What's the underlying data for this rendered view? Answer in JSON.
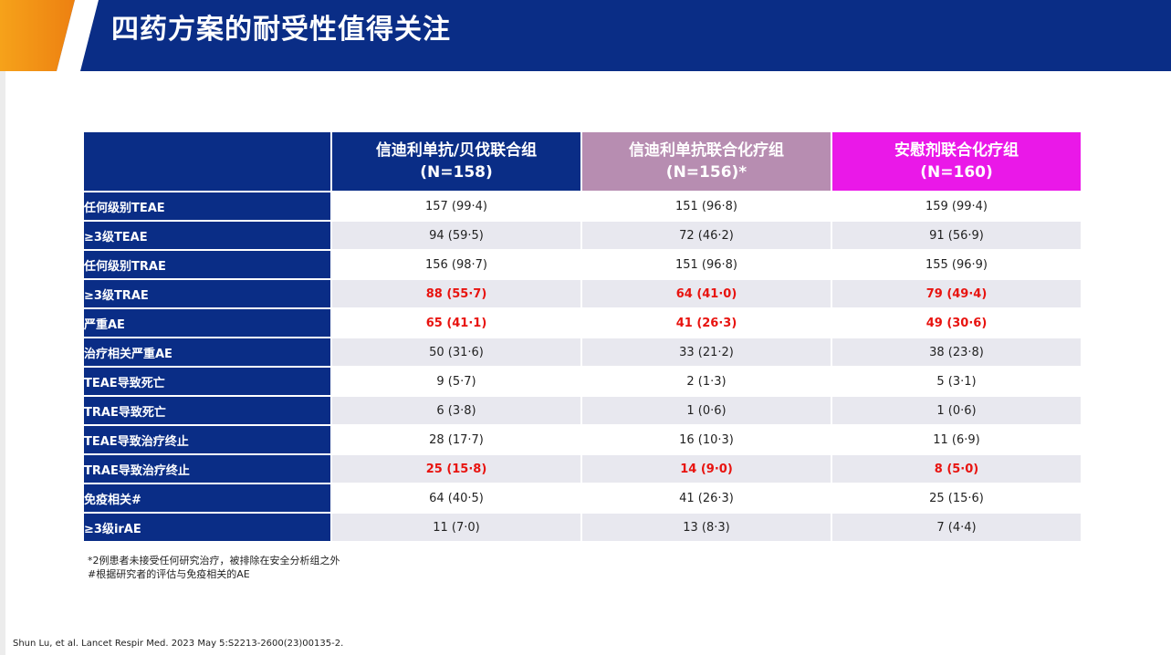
{
  "slide": {
    "title": "四药方案的耐受性值得关注",
    "footnotes": [
      "*2例患者未接受任何研究治疗，被排除在安全分析组之外",
      "#根据研究者的评估与免疫相关的AE"
    ],
    "citation": "Shun Lu, et al. Lancet Respir Med. 2023 May 5:S2213-2600(23)00135-2.",
    "colors": {
      "header": "#0a2d86",
      "group2": "#b78db1",
      "group3": "#ea18e8",
      "highlight": "#e8130f",
      "accent": "#f6a21a"
    }
  },
  "table": {
    "groups": [
      {
        "name": "信迪利单抗/贝伐联合组",
        "n": "(N=158)"
      },
      {
        "name": "信迪利单抗联合化疗组",
        "n": "(N=156)*"
      },
      {
        "name": "安慰剂联合化疗组",
        "n": "(N=160)"
      }
    ],
    "rows": [
      {
        "label": "任何级别TEAE",
        "values": [
          "157 (99·4)",
          "151 (96·8)",
          "159 (99·4)"
        ],
        "highlight": false
      },
      {
        "label": "≥3级TEAE",
        "values": [
          "94 (59·5)",
          "72 (46·2)",
          "91 (56·9)"
        ],
        "highlight": false
      },
      {
        "label": "任何级别TRAE",
        "values": [
          "156 (98·7)",
          "151 (96·8)",
          "155 (96·9)"
        ],
        "highlight": false
      },
      {
        "label": "≥3级TRAE",
        "values": [
          "88 (55·7)",
          "64 (41·0)",
          "79 (49·4)"
        ],
        "highlight": true
      },
      {
        "label": "严重AE",
        "values": [
          "65 (41·1)",
          "41 (26·3)",
          "49 (30·6)"
        ],
        "highlight": true
      },
      {
        "label": "治疗相关严重AE",
        "values": [
          "50 (31·6)",
          "33 (21·2)",
          "38 (23·8)"
        ],
        "highlight": false
      },
      {
        "label": "TEAE导致死亡",
        "values": [
          "9 (5·7)",
          "2 (1·3)",
          "5 (3·1)"
        ],
        "highlight": false
      },
      {
        "label": "TRAE导致死亡",
        "values": [
          "6 (3·8)",
          "1 (0·6)",
          "1 (0·6)"
        ],
        "highlight": false
      },
      {
        "label": "TEAE导致治疗终止",
        "values": [
          "28 (17·7)",
          "16 (10·3)",
          "11 (6·9)"
        ],
        "highlight": false
      },
      {
        "label": "TRAE导致治疗终止",
        "values": [
          "25 (15·8)",
          "14 (9·0)",
          "8 (5·0)"
        ],
        "highlight": true
      },
      {
        "label": "免疫相关#",
        "values": [
          "64 (40·5)",
          "41 (26·3)",
          "25 (15·6)"
        ],
        "highlight": false
      },
      {
        "label": "≥3级irAE",
        "values": [
          "11 (7·0)",
          "13 (8·3)",
          "7 (4·4)"
        ],
        "highlight": false
      }
    ]
  }
}
